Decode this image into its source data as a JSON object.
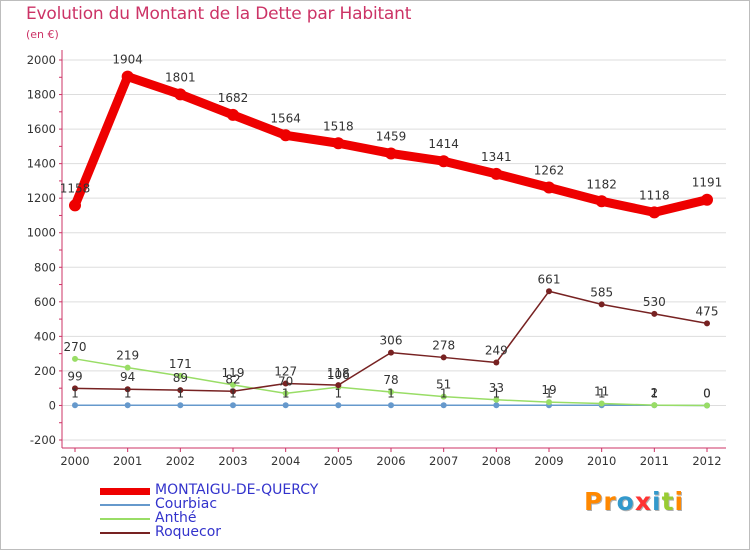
{
  "title": "Evolution du Montant de la Dette par Habitant",
  "unit": "(en €)",
  "watermark": "Proxiti",
  "watermark_colors": [
    "#ff8800",
    "#ff8800",
    "#3399cc",
    "#ff3333",
    "#3399cc",
    "#99cc33",
    "#ff8800"
  ],
  "chart_data": {
    "type": "line",
    "title": "Evolution du Montant de la Dette par Habitant",
    "subtitle": "(en €)",
    "xlabel": "",
    "ylabel": "",
    "x": [
      "2000",
      "2001",
      "2002",
      "2003",
      "2004",
      "2005",
      "2006",
      "2007",
      "2008",
      "2009",
      "2010",
      "2011",
      "2012"
    ],
    "ylim": [
      -200,
      2000
    ],
    "yticks": [
      -200,
      0,
      200,
      400,
      600,
      800,
      1000,
      1200,
      1400,
      1600,
      1800,
      2000
    ],
    "grid": "horizontal",
    "legend_position": "bottom-left",
    "series": [
      {
        "name": "MONTAIGU-DE-QUERCY",
        "color": "#ee0000",
        "width": 9,
        "marker": 6,
        "values": [
          1158,
          1904,
          1801,
          1682,
          1564,
          1518,
          1459,
          1414,
          1341,
          1262,
          1182,
          1118,
          1191
        ],
        "labels": [
          "1158",
          "1904",
          "1801",
          "1682",
          "1564",
          "1518",
          "1459",
          "1414",
          "1341",
          "1262",
          "1182",
          "1118",
          "1191"
        ]
      },
      {
        "name": "Courbiac",
        "color": "#6699cc",
        "width": 1.5,
        "marker": 3,
        "values": [
          1,
          1,
          1,
          1,
          1,
          1,
          1,
          1,
          1,
          1,
          1,
          1,
          0
        ],
        "labels": [
          "1",
          "1",
          "1",
          "1",
          "1",
          "1",
          "1",
          "1",
          "1",
          "1",
          "1",
          "1",
          "0"
        ]
      },
      {
        "name": "Anthé",
        "color": "#99dd66",
        "width": 1.5,
        "marker": 3,
        "values": [
          270,
          219,
          171,
          119,
          70,
          106,
          78,
          51,
          33,
          19,
          11,
          2,
          0
        ],
        "labels": [
          "270",
          "219",
          "171",
          "119",
          "70",
          "106",
          "78",
          "51",
          "33",
          "19",
          "11",
          "2",
          "0"
        ]
      },
      {
        "name": "Roquecor",
        "color": "#772222",
        "width": 1.5,
        "marker": 3,
        "values": [
          99,
          94,
          89,
          82,
          127,
          118,
          306,
          278,
          249,
          661,
          585,
          530,
          475
        ],
        "labels": [
          "99",
          "94",
          "89",
          "82",
          "127",
          "118",
          "306",
          "278",
          "249",
          "661",
          "585",
          "530",
          "475"
        ]
      }
    ]
  }
}
